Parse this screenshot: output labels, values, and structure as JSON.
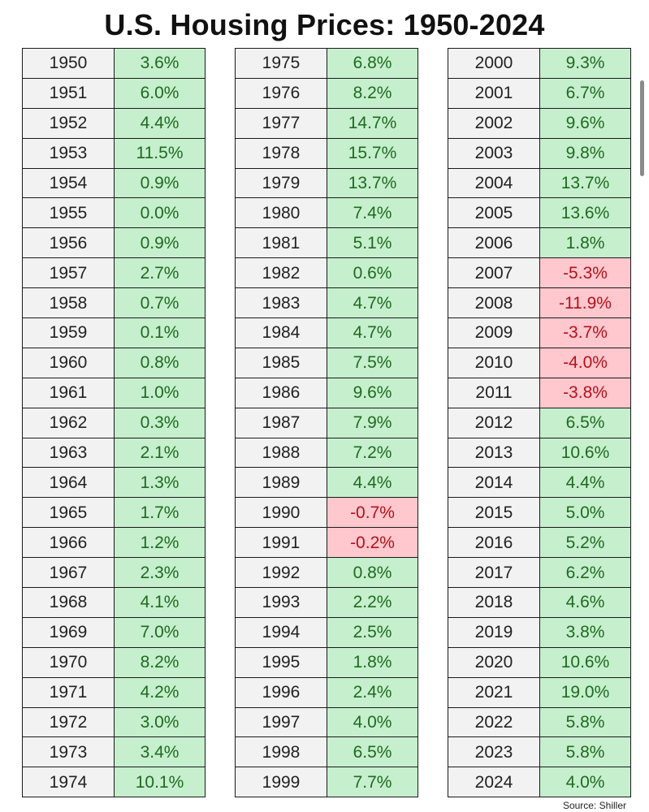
{
  "title": "U.S. Housing Prices: 1950-2024",
  "source": "Source: Shiller",
  "colors": {
    "positive_bg": "#c6efce",
    "positive_text": "#1e6b1e",
    "negative_bg": "#ffc7ce",
    "negative_text": "#b0131b",
    "year_bg": "#f2f2f2"
  },
  "chart_data": {
    "type": "table",
    "title": "U.S. Housing Prices: 1950-2024",
    "source": "Source: Shiller",
    "columns": [
      {
        "years": [
          "1950",
          "1951",
          "1952",
          "1953",
          "1954",
          "1955",
          "1956",
          "1957",
          "1958",
          "1959",
          "1960",
          "1961",
          "1962",
          "1963",
          "1964",
          "1965",
          "1966",
          "1967",
          "1968",
          "1969",
          "1970",
          "1971",
          "1972",
          "1973",
          "1974"
        ],
        "values": [
          "3.6%",
          "6.0%",
          "4.4%",
          "11.5%",
          "0.9%",
          "0.0%",
          "0.9%",
          "2.7%",
          "0.7%",
          "0.1%",
          "0.8%",
          "1.0%",
          "0.3%",
          "2.1%",
          "1.3%",
          "1.7%",
          "1.2%",
          "2.3%",
          "4.1%",
          "7.0%",
          "8.2%",
          "4.2%",
          "3.0%",
          "3.4%",
          "10.1%"
        ]
      },
      {
        "years": [
          "1975",
          "1976",
          "1977",
          "1978",
          "1979",
          "1980",
          "1981",
          "1982",
          "1983",
          "1984",
          "1985",
          "1986",
          "1987",
          "1988",
          "1989",
          "1990",
          "1991",
          "1992",
          "1993",
          "1994",
          "1995",
          "1996",
          "1997",
          "1998",
          "1999"
        ],
        "values": [
          "6.8%",
          "8.2%",
          "14.7%",
          "15.7%",
          "13.7%",
          "7.4%",
          "5.1%",
          "0.6%",
          "4.7%",
          "4.7%",
          "7.5%",
          "9.6%",
          "7.9%",
          "7.2%",
          "4.4%",
          "-0.7%",
          "-0.2%",
          "0.8%",
          "2.2%",
          "2.5%",
          "1.8%",
          "2.4%",
          "4.0%",
          "6.5%",
          "7.7%"
        ]
      },
      {
        "years": [
          "2000",
          "2001",
          "2002",
          "2003",
          "2004",
          "2005",
          "2006",
          "2007",
          "2008",
          "2009",
          "2010",
          "2011",
          "2012",
          "2013",
          "2014",
          "2015",
          "2016",
          "2017",
          "2018",
          "2019",
          "2020",
          "2021",
          "2022",
          "2023",
          "2024"
        ],
        "values": [
          "9.3%",
          "6.7%",
          "9.6%",
          "9.8%",
          "13.7%",
          "13.6%",
          "1.8%",
          "-5.3%",
          "-11.9%",
          "-3.7%",
          "-4.0%",
          "-3.8%",
          "6.5%",
          "10.6%",
          "4.4%",
          "5.0%",
          "5.2%",
          "6.2%",
          "4.6%",
          "3.8%",
          "10.6%",
          "19.0%",
          "5.8%",
          "5.8%",
          "4.0%"
        ]
      }
    ]
  }
}
